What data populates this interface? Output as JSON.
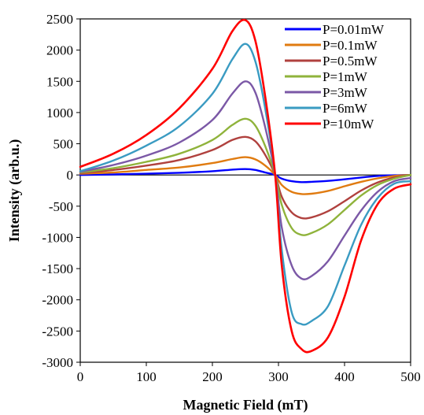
{
  "chart_data": {
    "type": "line",
    "xlabel": "Magnetic Field (mT)",
    "ylabel": "Intensity (arb.u.)",
    "xlim": [
      0,
      500
    ],
    "ylim": [
      -3000,
      2500
    ],
    "xticks": [
      0,
      100,
      200,
      300,
      400,
      500
    ],
    "yticks": [
      2500,
      2000,
      1500,
      1000,
      500,
      0,
      -500,
      -1000,
      -1500,
      -2000,
      -2500,
      -3000
    ],
    "grid": false,
    "legend_position": "top-right",
    "zero_line": true,
    "x": [
      0,
      50,
      100,
      150,
      200,
      230,
      250,
      265,
      280,
      295,
      305,
      320,
      335,
      350,
      375,
      400,
      425,
      450,
      475,
      500
    ],
    "series": [
      {
        "name": "P=0.01mW",
        "color": "#0000ff",
        "values": [
          0,
          8,
          20,
          35,
          60,
          85,
          95,
          80,
          40,
          0,
          -60,
          -100,
          -115,
          -110,
          -95,
          -70,
          -40,
          -15,
          -5,
          0
        ]
      },
      {
        "name": "P=0.1mW",
        "color": "#e07b10",
        "values": [
          20,
          40,
          80,
          120,
          190,
          255,
          285,
          250,
          150,
          0,
          -160,
          -270,
          -305,
          -300,
          -255,
          -180,
          -110,
          -55,
          -15,
          0
        ]
      },
      {
        "name": "P=0.5mW",
        "color": "#b0413e",
        "values": [
          30,
          80,
          150,
          240,
          400,
          560,
          610,
          540,
          320,
          0,
          -350,
          -600,
          -690,
          -680,
          -580,
          -420,
          -250,
          -120,
          -40,
          0
        ]
      },
      {
        "name": "P=1mW",
        "color": "#8fb33b",
        "values": [
          40,
          110,
          210,
          340,
          560,
          800,
          900,
          790,
          460,
          0,
          -480,
          -850,
          -960,
          -930,
          -790,
          -560,
          -330,
          -160,
          -60,
          0
        ]
      },
      {
        "name": "P=3mW",
        "color": "#7b58a6",
        "values": [
          50,
          160,
          310,
          520,
          880,
          1300,
          1500,
          1320,
          760,
          0,
          -840,
          -1450,
          -1660,
          -1620,
          -1380,
          -970,
          -570,
          -270,
          -100,
          -50
        ]
      },
      {
        "name": "P=6mW",
        "color": "#3a9bc2",
        "values": [
          60,
          230,
          470,
          780,
          1300,
          1850,
          2100,
          1820,
          1060,
          0,
          -1200,
          -2200,
          -2390,
          -2340,
          -2100,
          -1450,
          -800,
          -370,
          -140,
          -100
        ]
      },
      {
        "name": "P=10mW",
        "color": "#ff0000",
        "values": [
          130,
          340,
          640,
          1070,
          1700,
          2300,
          2480,
          2150,
          1250,
          0,
          -1450,
          -2500,
          -2790,
          -2820,
          -2600,
          -1950,
          -1050,
          -470,
          -220,
          -150
        ]
      }
    ]
  }
}
